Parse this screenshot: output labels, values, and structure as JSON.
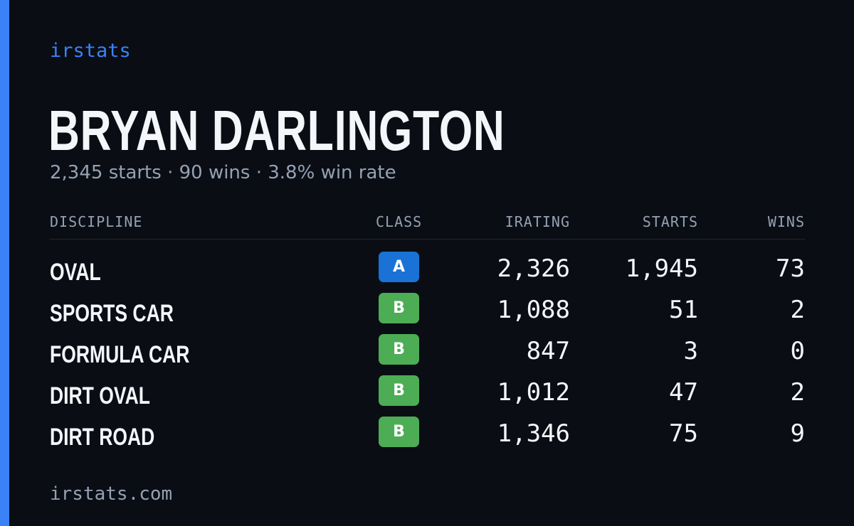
{
  "brand": "irstats",
  "driver": {
    "name": "BRYAN DARLINGTON",
    "summary": "2,345 starts · 90 wins · 3.8% win rate"
  },
  "table": {
    "headers": {
      "discipline": "DISCIPLINE",
      "class": "CLASS",
      "irating": "IRATING",
      "starts": "STARTS",
      "wins": "WINS"
    },
    "rows": [
      {
        "discipline": "OVAL",
        "class": "A",
        "irating": "2,326",
        "starts": "1,945",
        "wins": "73"
      },
      {
        "discipline": "SPORTS CAR",
        "class": "B",
        "irating": "1,088",
        "starts": "51",
        "wins": "2"
      },
      {
        "discipline": "FORMULA CAR",
        "class": "B",
        "irating": "847",
        "starts": "3",
        "wins": "0"
      },
      {
        "discipline": "DIRT OVAL",
        "class": "B",
        "irating": "1,012",
        "starts": "47",
        "wins": "2"
      },
      {
        "discipline": "DIRT ROAD",
        "class": "B",
        "irating": "1,346",
        "starts": "75",
        "wins": "9"
      }
    ]
  },
  "footer": "irstats.com",
  "colors": {
    "background": "#0a0d14",
    "accent": "#3b82f6",
    "class_a": "#1a72d6",
    "class_b": "#4cad55",
    "muted_text": "#95a1b3"
  }
}
